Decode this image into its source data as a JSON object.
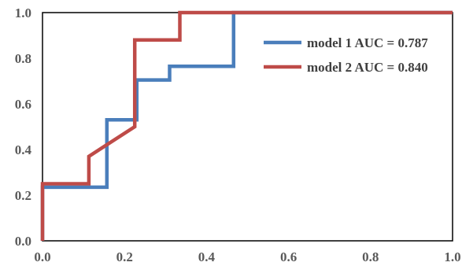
{
  "chart_data": {
    "type": "line",
    "title": "",
    "xlabel": "",
    "ylabel": "",
    "xlim": [
      0,
      1
    ],
    "ylim": [
      0,
      1
    ],
    "grid": false,
    "legend_position": "top-right",
    "x_ticks": [
      "0.0",
      "0.2",
      "0.4",
      "0.6",
      "0.8",
      "1.0"
    ],
    "y_ticks": [
      "0.0",
      "0.2",
      "0.4",
      "0.6",
      "0.8",
      "1.0"
    ],
    "series": [
      {
        "name": "model 1 AUC = 0.787",
        "color": "#4a7ebb",
        "x": [
          0.0,
          0.0,
          0.157,
          0.157,
          0.23,
          0.23,
          0.31,
          0.31,
          0.466,
          0.466,
          1.0
        ],
        "y": [
          0.0,
          0.235,
          0.235,
          0.53,
          0.53,
          0.705,
          0.705,
          0.765,
          0.765,
          1.0,
          1.0
        ]
      },
      {
        "name": "model 2 AUC = 0.840",
        "color": "#be4b48",
        "x": [
          0.0,
          0.0,
          0.113,
          0.113,
          0.225,
          0.225,
          0.335,
          0.335,
          1.0
        ],
        "y": [
          0.0,
          0.25,
          0.25,
          0.37,
          0.5,
          0.88,
          0.88,
          1.0,
          1.0
        ]
      }
    ]
  }
}
